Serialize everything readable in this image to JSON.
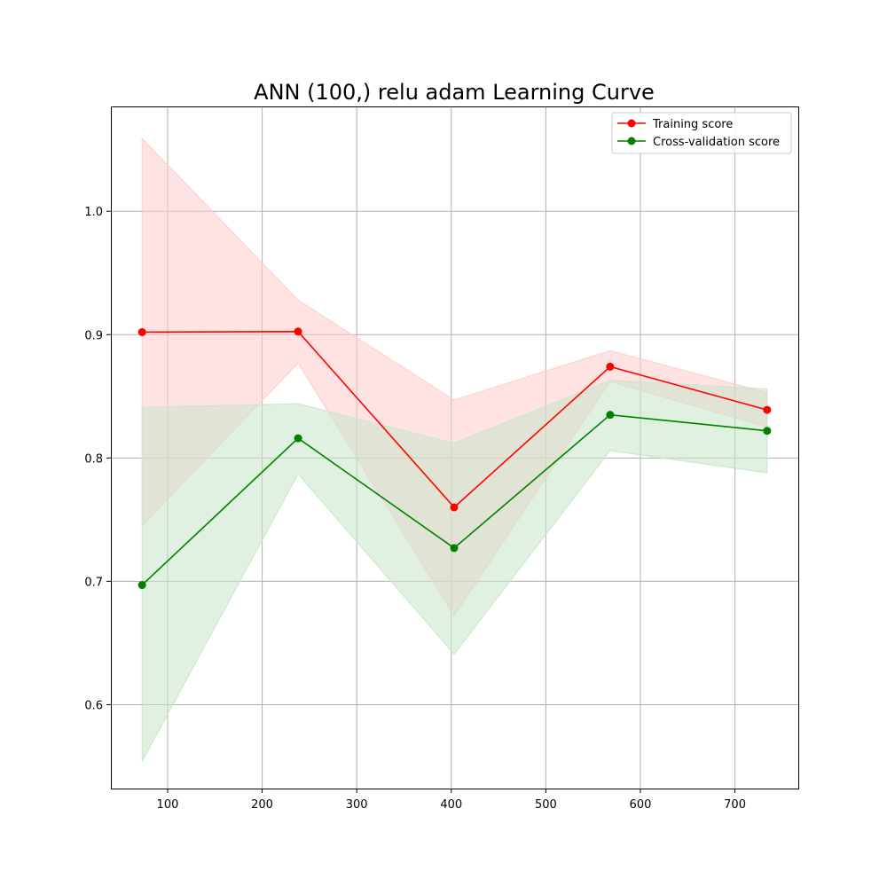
{
  "chart_data": {
    "type": "line",
    "title": "ANN (100,) relu adam Learning Curve",
    "xlabel": "",
    "ylabel": "",
    "xlim": [
      40,
      767
    ],
    "ylim": [
      0.532,
      1.085
    ],
    "x_ticks": [
      100,
      200,
      300,
      400,
      500,
      600,
      700
    ],
    "y_ticks": [
      0.6,
      0.7,
      0.8,
      0.9,
      1.0
    ],
    "x_tick_labels": [
      "100",
      "200",
      "300",
      "400",
      "500",
      "600",
      "700"
    ],
    "y_tick_labels": [
      "0.6",
      "0.7",
      "0.8",
      "0.9",
      "1.0"
    ],
    "grid": true,
    "legend_position": "top-right",
    "x": [
      73,
      238,
      403,
      568,
      734
    ],
    "series": [
      {
        "name": "Training score",
        "color": "#ff0000",
        "band_color": "#ffcccc",
        "values": [
          0.902,
          0.9025,
          0.76,
          0.874,
          0.839
        ],
        "lower": [
          0.745,
          0.877,
          0.672,
          0.862,
          0.825
        ],
        "upper": [
          1.059,
          0.928,
          0.847,
          0.887,
          0.853
        ]
      },
      {
        "name": "Cross-validation score",
        "color": "#008000",
        "band_color": "#c8e6c8",
        "values": [
          0.697,
          0.816,
          0.727,
          0.835,
          0.822
        ],
        "lower": [
          0.554,
          0.787,
          0.641,
          0.806,
          0.788
        ],
        "upper": [
          0.841,
          0.844,
          0.812,
          0.863,
          0.856
        ]
      }
    ]
  }
}
